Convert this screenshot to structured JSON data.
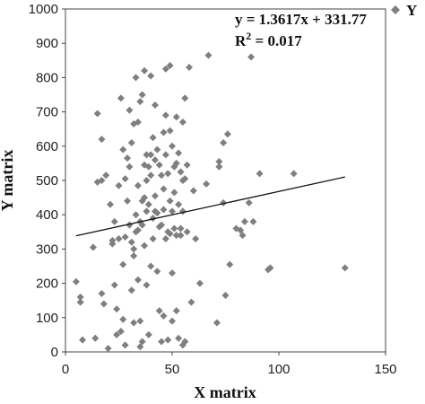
{
  "chart_data": {
    "type": "scatter",
    "xlabel": "X matrix",
    "ylabel": "Y matrix",
    "xlim": [
      0,
      150
    ],
    "ylim": [
      0,
      1000
    ],
    "xticks": [
      0,
      50,
      100,
      150
    ],
    "yticks": [
      0,
      100,
      200,
      300,
      400,
      500,
      600,
      700,
      800,
      900,
      1000
    ],
    "grid": false,
    "legend_position": "top-right",
    "marker_color": "#7f7f7f",
    "series": [
      {
        "name": "Y",
        "marker": "diamond",
        "points": [
          [
            5,
            205
          ],
          [
            7,
            160
          ],
          [
            7,
            145
          ],
          [
            8,
            35
          ],
          [
            13,
            305
          ],
          [
            14,
            40
          ],
          [
            15,
            695
          ],
          [
            15,
            495
          ],
          [
            17,
            620
          ],
          [
            17,
            500
          ],
          [
            17,
            170
          ],
          [
            18,
            140
          ],
          [
            19,
            515
          ],
          [
            20,
            10
          ],
          [
            21,
            430
          ],
          [
            22,
            325
          ],
          [
            22,
            315
          ],
          [
            23,
            380
          ],
          [
            23,
            195
          ],
          [
            24,
            50
          ],
          [
            24,
            125
          ],
          [
            25,
            485
          ],
          [
            25,
            330
          ],
          [
            26,
            740
          ],
          [
            26,
            60
          ],
          [
            27,
            590
          ],
          [
            27,
            95
          ],
          [
            27,
            255
          ],
          [
            28,
            20
          ],
          [
            28,
            505
          ],
          [
            28,
            335
          ],
          [
            29,
            440
          ],
          [
            29,
            565
          ],
          [
            30,
            705
          ],
          [
            30,
            370
          ],
          [
            30,
            540
          ],
          [
            31,
            610
          ],
          [
            31,
            320
          ],
          [
            31,
            180
          ],
          [
            32,
            665
          ],
          [
            32,
            300
          ],
          [
            32,
            280
          ],
          [
            32,
            85
          ],
          [
            33,
            400
          ],
          [
            33,
            350
          ],
          [
            33,
            800
          ],
          [
            34,
            670
          ],
          [
            34,
            485
          ],
          [
            34,
            355
          ],
          [
            34,
            210
          ],
          [
            35,
            730
          ],
          [
            35,
            380
          ],
          [
            35,
            90
          ],
          [
            35,
            15
          ],
          [
            36,
            750
          ],
          [
            36,
            440
          ],
          [
            36,
            370
          ],
          [
            36,
            30
          ],
          [
            37,
            820
          ],
          [
            37,
            545
          ],
          [
            37,
            450
          ],
          [
            37,
            310
          ],
          [
            38,
            575
          ],
          [
            38,
            500
          ],
          [
            38,
            410
          ],
          [
            38,
            195
          ],
          [
            39,
            540
          ],
          [
            39,
            430
          ],
          [
            39,
            50
          ],
          [
            40,
            805
          ],
          [
            40,
            575
          ],
          [
            40,
            515
          ],
          [
            40,
            250
          ],
          [
            41,
            625
          ],
          [
            41,
            390
          ],
          [
            41,
            330
          ],
          [
            42,
            720
          ],
          [
            42,
            560
          ],
          [
            42,
            455
          ],
          [
            42,
            410
          ],
          [
            43,
            590
          ],
          [
            43,
            405
          ],
          [
            43,
            235
          ],
          [
            44,
            545
          ],
          [
            44,
            365
          ],
          [
            44,
            120
          ],
          [
            45,
            515
          ],
          [
            45,
            370
          ],
          [
            45,
            30
          ],
          [
            46,
            640
          ],
          [
            46,
            475
          ],
          [
            46,
            415
          ],
          [
            46,
            105
          ],
          [
            47,
            825
          ],
          [
            47,
            690
          ],
          [
            47,
            575
          ],
          [
            47,
            330
          ],
          [
            48,
            520
          ],
          [
            48,
            350
          ],
          [
            48,
            35
          ],
          [
            49,
            835
          ],
          [
            49,
            645
          ],
          [
            49,
            440
          ],
          [
            49,
            345
          ],
          [
            50,
            600
          ],
          [
            50,
            410
          ],
          [
            50,
            230
          ],
          [
            50,
            90
          ],
          [
            51,
            540
          ],
          [
            51,
            465
          ],
          [
            51,
            360
          ],
          [
            52,
            685
          ],
          [
            52,
            550
          ],
          [
            52,
            340
          ],
          [
            52,
            120
          ],
          [
            53,
            580
          ],
          [
            53,
            430
          ],
          [
            53,
            40
          ],
          [
            54,
            525
          ],
          [
            54,
            360
          ],
          [
            54,
            340
          ],
          [
            55,
            500
          ],
          [
            55,
            670
          ],
          [
            55,
            410
          ],
          [
            55,
            20
          ],
          [
            56,
            740
          ],
          [
            56,
            505
          ],
          [
            56,
            30
          ],
          [
            57,
            350
          ],
          [
            57,
            545
          ],
          [
            58,
            830
          ],
          [
            59,
            145
          ],
          [
            60,
            470
          ],
          [
            61,
            330
          ],
          [
            63,
            200
          ],
          [
            66,
            490
          ],
          [
            67,
            865
          ],
          [
            71,
            85
          ],
          [
            72,
            555
          ],
          [
            72,
            540
          ],
          [
            74,
            610
          ],
          [
            74,
            435
          ],
          [
            75,
            165
          ],
          [
            76,
            635
          ],
          [
            77,
            255
          ],
          [
            80,
            360
          ],
          [
            82,
            355
          ],
          [
            83,
            340
          ],
          [
            84,
            380
          ],
          [
            86,
            435
          ],
          [
            87,
            860
          ],
          [
            88,
            380
          ],
          [
            91,
            520
          ],
          [
            95,
            240
          ],
          [
            96,
            245
          ],
          [
            107,
            520
          ],
          [
            131,
            245
          ]
        ]
      }
    ],
    "trendline": {
      "type": "linear",
      "slope": 1.3617,
      "intercept": 331.77,
      "x_range": [
        5,
        131
      ],
      "equation_lines": [
        "y = 1.3617x + 331.77",
        "R",
        "2",
        " = 0.017"
      ]
    }
  }
}
